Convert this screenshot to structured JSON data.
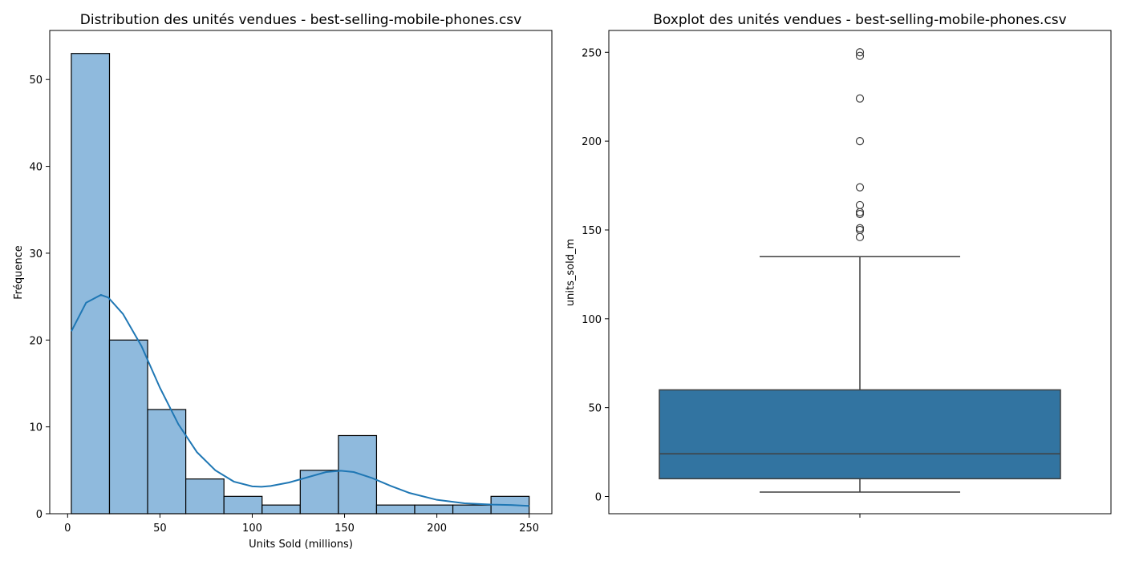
{
  "chart_data": [
    {
      "type": "bar",
      "subtype": "histogram",
      "title": "Distribution des unités vendues - best-selling-mobile-phones.csv",
      "xlabel": "Units Sold (millions)",
      "ylabel": "Fréquence",
      "xlim": [
        -9.7,
        262.3
      ],
      "ylim": [
        0,
        55.65
      ],
      "xticks": [
        0,
        50,
        100,
        150,
        200,
        250
      ],
      "yticks": [
        0,
        10,
        20,
        30,
        40,
        50
      ],
      "bin_edges": [
        2.0,
        22.67,
        43.33,
        64.0,
        84.67,
        105.33,
        126.0,
        146.67,
        167.33,
        188.0,
        208.67,
        229.33,
        250.0
      ],
      "counts": [
        53,
        20,
        12,
        4,
        2,
        1,
        5,
        9,
        1,
        1,
        1,
        2
      ],
      "kde": {
        "x": [
          2,
          10,
          18,
          22,
          30,
          40,
          50,
          60,
          70,
          80,
          90,
          100,
          105,
          110,
          120,
          130,
          140,
          148,
          155,
          165,
          175,
          185,
          200,
          215,
          230,
          240,
          250
        ],
        "y": [
          21,
          24.3,
          25.2,
          24.9,
          23,
          19.3,
          14.5,
          10.3,
          7.1,
          5.0,
          3.7,
          3.15,
          3.1,
          3.2,
          3.6,
          4.2,
          4.8,
          4.95,
          4.8,
          4.1,
          3.2,
          2.4,
          1.6,
          1.2,
          1.05,
          1.0,
          0.9
        ]
      },
      "grid": false,
      "colors": {
        "bar_fill": "#8fbadd",
        "bar_edge": "#000000",
        "kde_line": "#1f77b4"
      }
    },
    {
      "type": "box",
      "title": "Boxplot des unités vendues - best-selling-mobile-phones.csv",
      "xlabel": "",
      "ylabel": "units_sold_m",
      "ylim": [
        -9.7,
        262.3
      ],
      "yticks": [
        0,
        50,
        100,
        150,
        200,
        250
      ],
      "stats": {
        "whisker_low": 2.5,
        "q1": 10,
        "median": 24,
        "q3": 60,
        "whisker_high": 135
      },
      "outliers": [
        250,
        248,
        224,
        200,
        174,
        164,
        160,
        159,
        151,
        150,
        146
      ],
      "grid": false,
      "colors": {
        "box_fill": "#3274a1",
        "line": "#3f3f3f"
      }
    }
  ]
}
